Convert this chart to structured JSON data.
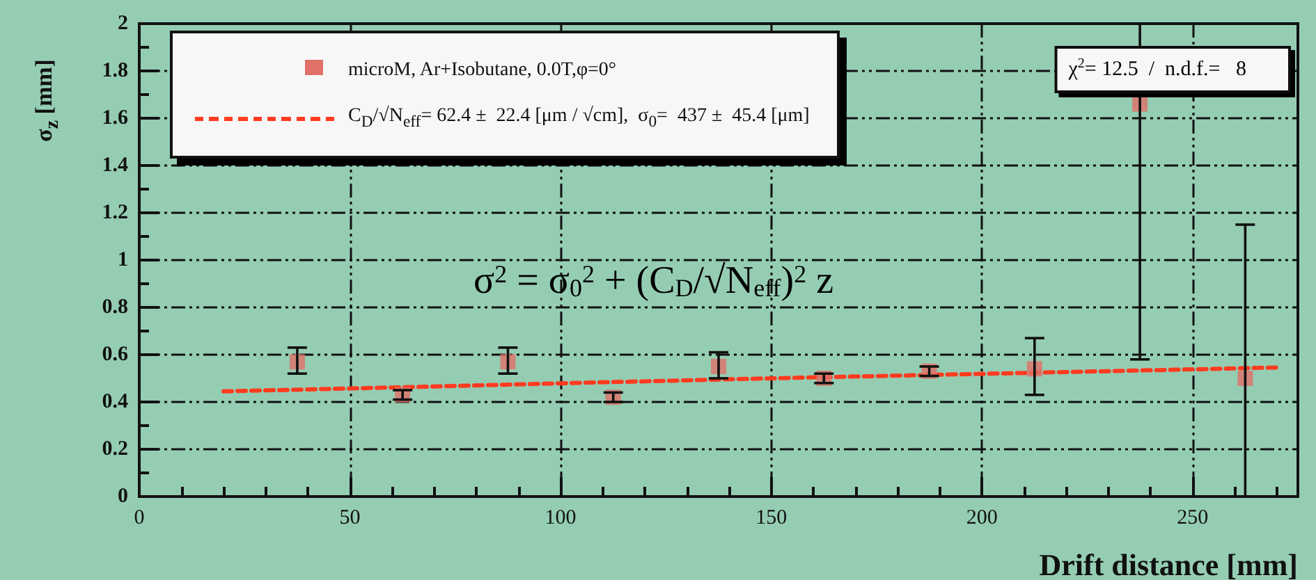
{
  "chart_data": {
    "type": "scatter",
    "xlabel": "Drift distance [mm]",
    "ylabel": "σ$_{z}$ [mm]",
    "xlim": [
      0,
      275
    ],
    "xticks": [
      0,
      50,
      100,
      150,
      200,
      250
    ],
    "ylim": [
      0,
      2
    ],
    "yticks": [
      0,
      0.2,
      0.4,
      0.6,
      0.8,
      1,
      1.2,
      1.4,
      1.6,
      1.8,
      2
    ],
    "grid": true,
    "legend": "top left",
    "annotations": [
      "χ$^{2}$= 12.5  /  n.d.f.=   8",
      "σ$^{2}$ = σ$_{0}$$^{2}$ + (C$_{D}$/√N$_{eff}$)$^{2}$ z"
    ],
    "series": [
      {
        "name": "microM, Ar+Isobutane, 0.0T,φ=0°",
        "marker": "square",
        "color": "#e07068",
        "x": [
          37.5,
          62.5,
          87.5,
          112.5,
          137.5,
          162.5,
          187.5,
          212.5,
          237.5,
          262.5
        ],
        "values": [
          0.57,
          0.43,
          0.57,
          0.42,
          0.55,
          0.5,
          0.53,
          0.54,
          1.66,
          0.5
        ],
        "errors": [
          [
            0.52,
            0.63
          ],
          [
            0.41,
            0.45
          ],
          [
            0.52,
            0.63
          ],
          [
            0.4,
            0.44
          ],
          [
            0.5,
            0.61
          ],
          [
            0.48,
            0.52
          ],
          [
            0.51,
            0.55
          ],
          [
            0.43,
            0.67
          ],
          [
            0.58,
            2
          ],
          [
            0,
            1.15
          ]
        ]
      },
      {
        "name": "C$_{D}$/√N$_{eff}$= 62.4 ±  22.4 [μm / √cm],  σ$_{0}$=  437 ±  45.4 [μm]",
        "type": "line",
        "line_style": "dashed",
        "marker": "none",
        "color": "#ff3b1f",
        "x": [
          20,
          50,
          100,
          150,
          200,
          250,
          270
        ],
        "values": [
          0.445,
          0.457,
          0.479,
          0.5,
          0.519,
          0.538,
          0.546
        ]
      }
    ]
  }
}
